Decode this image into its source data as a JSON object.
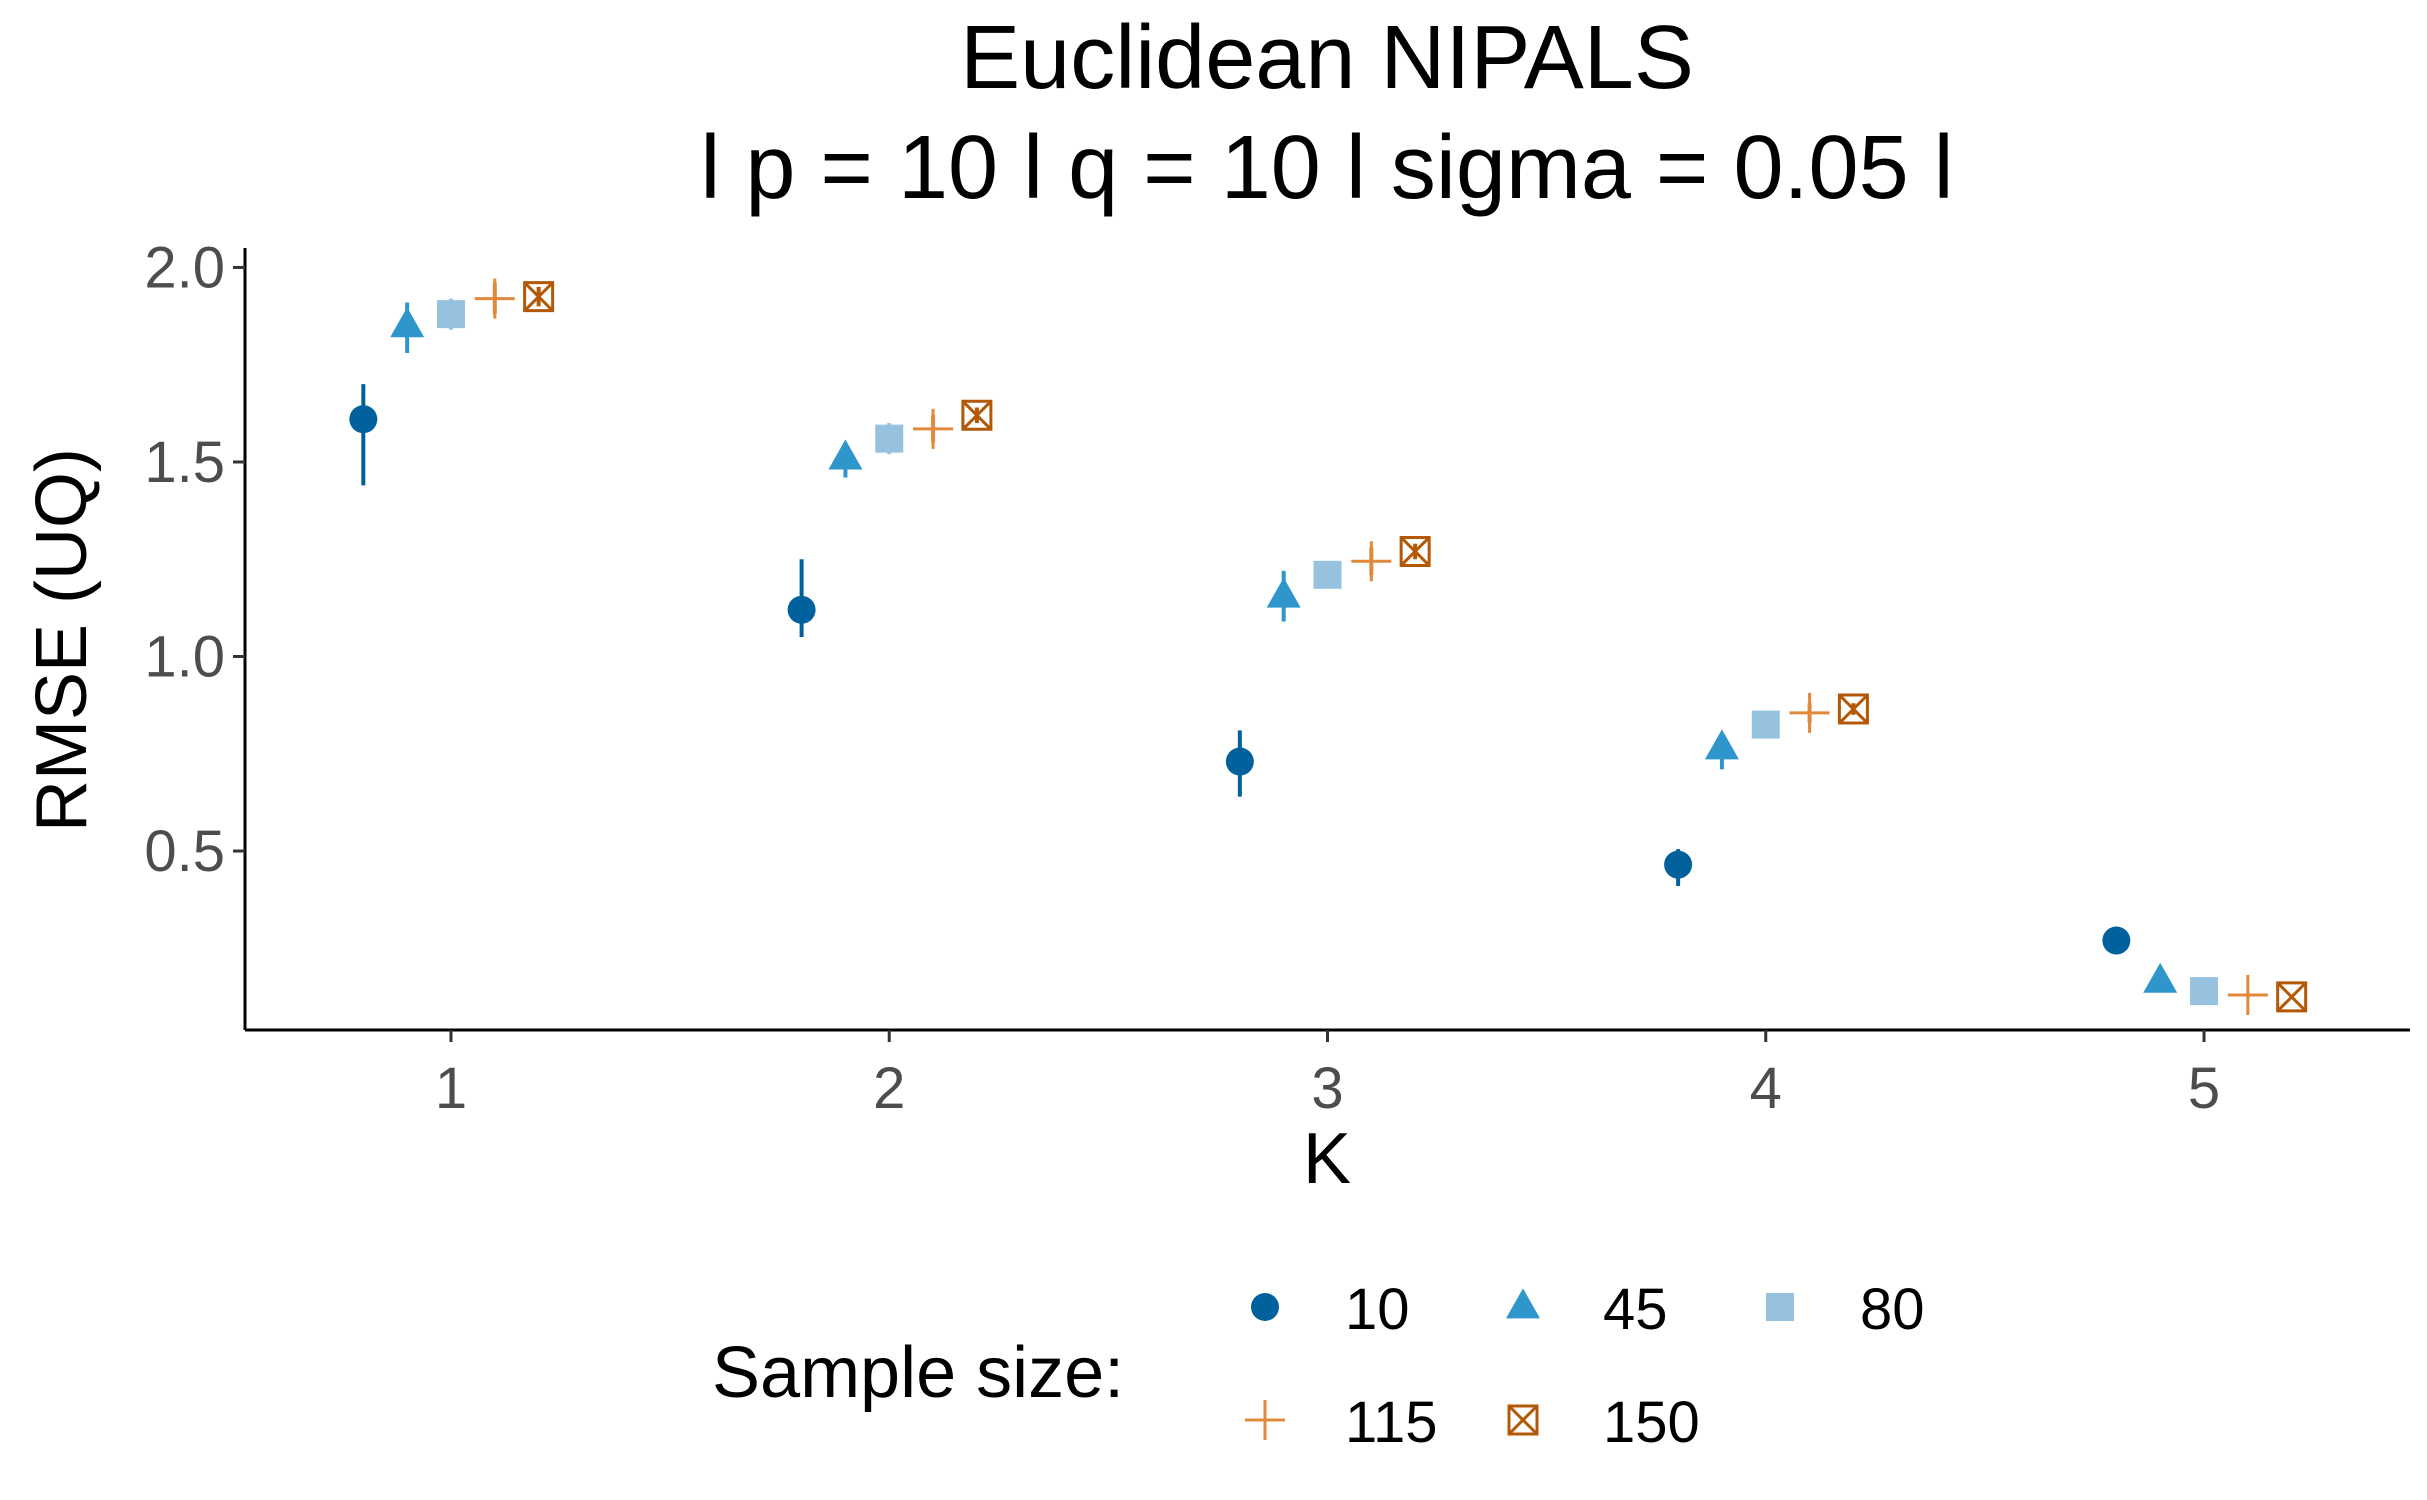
{
  "chart_data": {
    "type": "scatter",
    "title": "Euclidean NIPALS",
    "subtitle": "l p = 10 l q = 10 l sigma = 0.05 l",
    "xlabel": "K",
    "ylabel": "RMSE (UQ)",
    "x_ticks": [
      "1",
      "2",
      "3",
      "4",
      "5"
    ],
    "y_ticks": [
      "0.5",
      "1.0",
      "1.5",
      "2.0"
    ],
    "xlim": [
      0.53,
      5.47
    ],
    "ylim": [
      0.04,
      2.05
    ],
    "grid": false,
    "legend": {
      "title": "Sample size:",
      "placement": "bottom"
    },
    "x_dodge": [
      -0.2,
      -0.1,
      0.0,
      0.1,
      0.2
    ],
    "series": [
      {
        "name": "10",
        "shape": "circle",
        "color": "#00619C",
        "x": [
          1,
          2,
          3,
          4,
          5
        ],
        "y": [
          1.61,
          1.12,
          0.73,
          0.465,
          0.27
        ],
        "ymin": [
          1.44,
          1.05,
          0.64,
          0.41,
          0.26
        ],
        "ymax": [
          1.7,
          1.25,
          0.81,
          0.505,
          0.28
        ]
      },
      {
        "name": "45",
        "shape": "triangle",
        "color": "#2E96CB",
        "x": [
          1,
          2,
          3,
          4,
          5
        ],
        "y": [
          1.85,
          1.51,
          1.155,
          0.765,
          0.165
        ],
        "ymin": [
          1.78,
          1.46,
          1.09,
          0.71,
          0.155
        ],
        "ymax": [
          1.91,
          1.55,
          1.22,
          0.8,
          0.175
        ]
      },
      {
        "name": "80",
        "shape": "square",
        "color": "#97C2DF",
        "x": [
          1,
          2,
          3,
          4,
          5
        ],
        "y": [
          1.88,
          1.56,
          1.21,
          0.825,
          0.14
        ],
        "ymin": [
          1.84,
          1.52,
          1.18,
          0.8,
          0.135
        ],
        "ymax": [
          1.92,
          1.6,
          1.24,
          0.85,
          0.145
        ]
      },
      {
        "name": "115",
        "shape": "plus",
        "color": "#E0893B",
        "x": [
          1,
          2,
          3,
          4,
          5
        ],
        "y": [
          1.92,
          1.585,
          1.245,
          0.855,
          0.13
        ],
        "ymin": [
          1.88,
          1.55,
          1.21,
          0.83,
          0.125
        ],
        "ymax": [
          1.96,
          1.62,
          1.28,
          0.88,
          0.135
        ]
      },
      {
        "name": "150",
        "shape": "square-x",
        "color": "#B35806",
        "x": [
          1,
          2,
          3,
          4,
          5
        ],
        "y": [
          1.925,
          1.62,
          1.27,
          0.865,
          0.125
        ],
        "ymin": [
          1.9,
          1.6,
          1.25,
          0.85,
          0.12
        ],
        "ymax": [
          1.95,
          1.64,
          1.29,
          0.88,
          0.13
        ]
      }
    ]
  }
}
